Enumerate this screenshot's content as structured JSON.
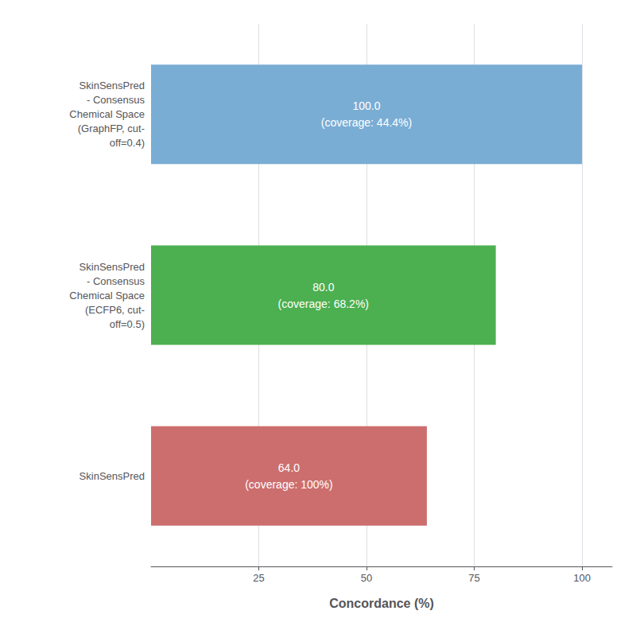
{
  "chart_data": {
    "type": "bar",
    "orientation": "horizontal",
    "categories": [
      "SkinSensPred",
      "SkinSensPred\n- Consensus\nChemical Space\n(ECFP6, cut-\noff=0.5)",
      "SkinSensPred\n- Consensus\nChemical Space\n(GraphFP, cut-\noff=0.4)"
    ],
    "values": [
      64.0,
      80.0,
      100.0
    ],
    "value_labels": [
      "64.0\n(coverage: 100%)",
      "80.0\n(coverage: 68.2%)",
      "100.0\n(coverage: 44.4%)"
    ],
    "colors": [
      "#cd6e6e",
      "#4caf50",
      "#7aadd4"
    ],
    "xlabel": "Concordance (%)",
    "xlim": [
      0,
      107
    ],
    "xticks": [
      25,
      50,
      75,
      100
    ],
    "grid": true,
    "data_labels": true
  }
}
